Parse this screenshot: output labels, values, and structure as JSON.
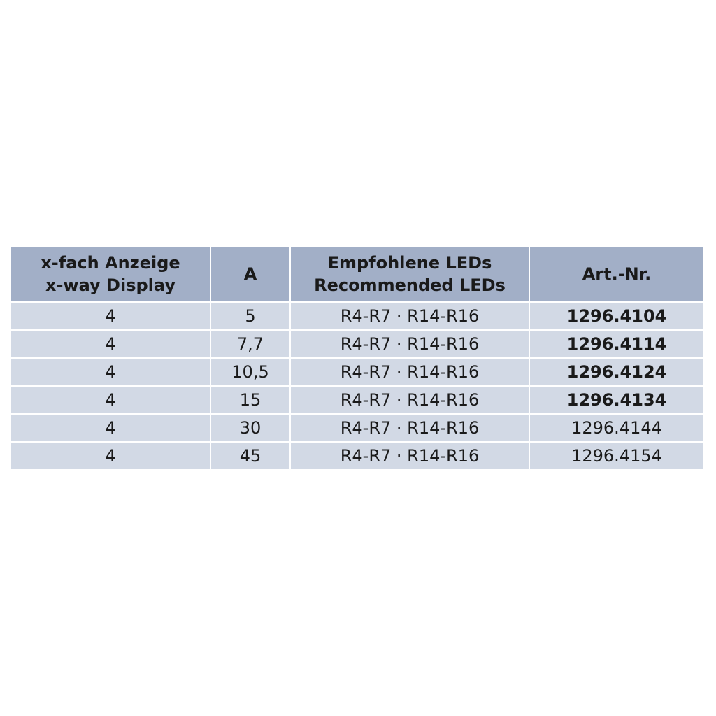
{
  "colors": {
    "header_bg": "#a2afc7",
    "row_bg": "#d2d9e5"
  },
  "headers": [
    {
      "line1": "x-fach Anzeige",
      "line2": "x-way Display"
    },
    {
      "line1": "A",
      "line2": ""
    },
    {
      "line1": "Empfohlene LEDs",
      "line2": "Recommended LEDs"
    },
    {
      "line1": "Art.-Nr.",
      "line2": ""
    }
  ],
  "rows": [
    {
      "display": "4",
      "a": "5",
      "leds": "R4-R7 · R14-R16",
      "art": "1296.4104",
      "bold": true
    },
    {
      "display": "4",
      "a": "7,7",
      "leds": "R4-R7 · R14-R16",
      "art": "1296.4114",
      "bold": true
    },
    {
      "display": "4",
      "a": "10,5",
      "leds": "R4-R7 · R14-R16",
      "art": "1296.4124",
      "bold": true
    },
    {
      "display": "4",
      "a": "15",
      "leds": "R4-R7 · R14-R16",
      "art": "1296.4134",
      "bold": true
    },
    {
      "display": "4",
      "a": "30",
      "leds": "R4-R7 · R14-R16",
      "art": "1296.4144",
      "bold": false
    },
    {
      "display": "4",
      "a": "45",
      "leds": "R4-R7 · R14-R16",
      "art": "1296.4154",
      "bold": false
    }
  ]
}
